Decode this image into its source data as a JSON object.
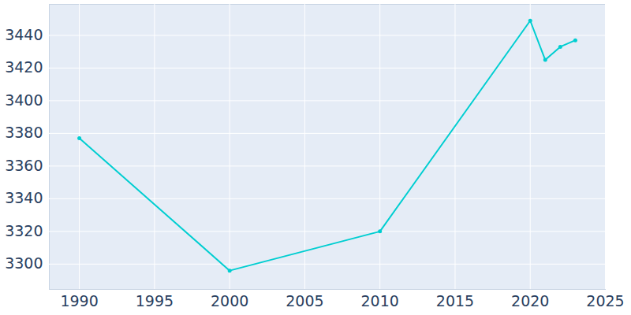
{
  "chart_data": {
    "type": "line",
    "x": [
      1990,
      2000,
      2010,
      2020,
      2021,
      2022,
      2023
    ],
    "values": [
      3377,
      3296,
      3320,
      3449,
      3425,
      3433,
      3437
    ],
    "color": "#00ced1",
    "marker": "circle",
    "xlim": [
      1988,
      2025
    ],
    "xticks": [
      1990,
      1995,
      2000,
      2005,
      2010,
      2015,
      2020,
      2025
    ],
    "ylim": [
      3284.5,
      3459
    ],
    "yticks": [
      3300,
      3320,
      3340,
      3360,
      3380,
      3400,
      3420,
      3440
    ],
    "grid": true
  }
}
